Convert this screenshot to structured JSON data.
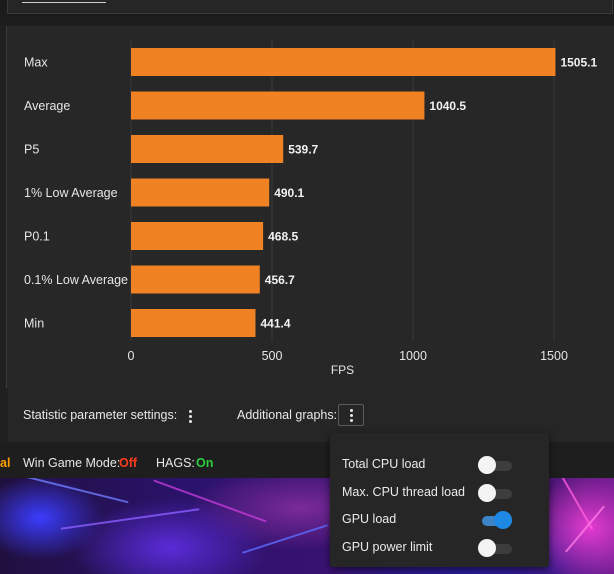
{
  "chart_data": {
    "type": "bar",
    "orientation": "horizontal",
    "categories": [
      "Max",
      "Average",
      "P5",
      "1% Low Average",
      "P0.1",
      "0.1% Low Average",
      "Min"
    ],
    "values": [
      1505.1,
      1040.5,
      539.7,
      490.1,
      468.5,
      456.7,
      441.4
    ],
    "value_labels": [
      "1505.1",
      "1040.5",
      "539.7",
      "490.1",
      "468.5",
      "456.7",
      "441.4"
    ],
    "xlabel": "FPS",
    "xticks": [
      0,
      500,
      1000,
      1500
    ],
    "xlim": [
      0,
      1500
    ],
    "grid": true,
    "bar_color": "#f08223",
    "legend": "none"
  },
  "settings": {
    "statistic_label": "Statistic parameter settings:",
    "additional_label": "Additional graphs:"
  },
  "status": {
    "clipped_text": "al",
    "clipped_color": "#ff9d00",
    "win_game_mode_label": "Win Game Mode:",
    "win_game_mode_value": "Off",
    "win_game_mode_color": "#ff3b1f",
    "hags_label": "HAGS:",
    "hags_value": "On",
    "hags_color": "#2ecc40"
  },
  "popup": {
    "items": [
      {
        "label": "Total CPU load",
        "checked": false
      },
      {
        "label": "Max. CPU thread load",
        "checked": false
      },
      {
        "label": "GPU load",
        "checked": true
      },
      {
        "label": "GPU power limit",
        "checked": false
      }
    ]
  },
  "icons": {
    "settings_menu": "kebab-vertical-icon",
    "graphs_menu": "kebab-vertical-icon"
  }
}
